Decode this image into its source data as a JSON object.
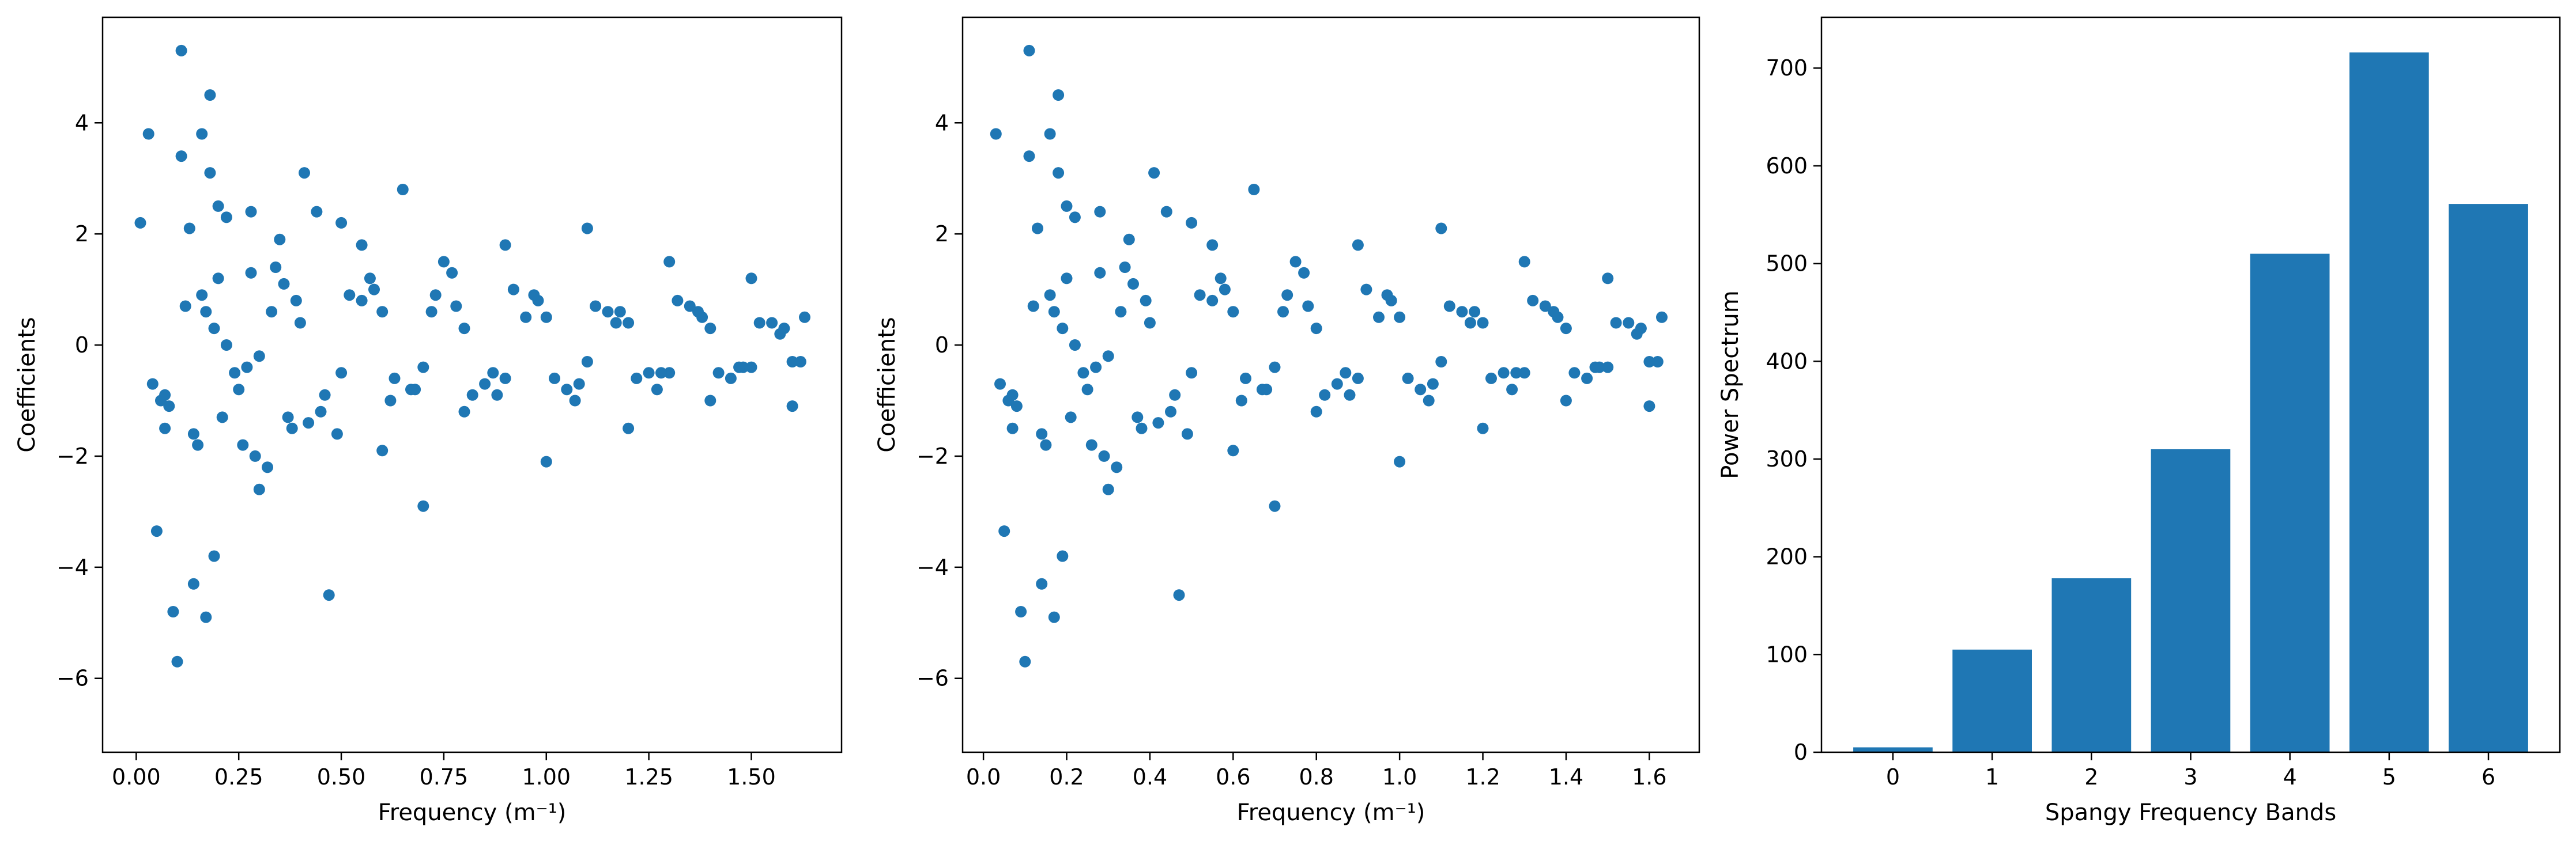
{
  "figure": {
    "background": "#ffffff",
    "marker_color": "#1f77b4",
    "bar_color": "#1f77b4"
  },
  "chart_data": [
    {
      "type": "scatter",
      "title": "",
      "xlabel": "Frequency (m⁻¹)",
      "ylabel": "Coefficients",
      "xlim": [
        -0.082,
        1.72
      ],
      "ylim": [
        -7.33,
        5.9
      ],
      "xticks": [
        0.0,
        0.25,
        0.5,
        0.75,
        1.0,
        1.25,
        1.5
      ],
      "xtick_labels": [
        "0.00",
        "0.25",
        "0.50",
        "0.75",
        "1.00",
        "1.25",
        "1.50"
      ],
      "yticks": [
        -6,
        -4,
        -2,
        0,
        2,
        4
      ],
      "ytick_labels": [
        "−6",
        "−4",
        "−2",
        "0",
        "2",
        "4"
      ],
      "grid": false,
      "legend": "none",
      "x": [
        0.01,
        0.03,
        0.04,
        0.05,
        0.06,
        0.07,
        0.07,
        0.09,
        0.1,
        0.11,
        0.11,
        0.13,
        0.14,
        0.15,
        0.16,
        0.17,
        0.18,
        0.18,
        0.19,
        0.2,
        0.22,
        0.24,
        0.26,
        0.28,
        0.3,
        0.32,
        0.35,
        0.38,
        0.41,
        0.44,
        0.47,
        0.5,
        0.55,
        0.6,
        0.65,
        0.7,
        0.75,
        0.8,
        0.9,
        1.0,
        1.1,
        1.2,
        1.3,
        1.4,
        1.5,
        1.6,
        1.63,
        0.2,
        0.25,
        0.33,
        0.42,
        0.12,
        0.08,
        0.16,
        0.27,
        0.36,
        0.46,
        0.55,
        0.63,
        0.73,
        0.85,
        0.95,
        1.05,
        1.15,
        1.25,
        1.35,
        1.45,
        1.55,
        1.6,
        0.3,
        0.4,
        0.5,
        0.6,
        0.7,
        0.8,
        0.9,
        1.0,
        1.1,
        1.2,
        1.3,
        1.4,
        1.5,
        0.22,
        0.34,
        0.45,
        0.58,
        0.68,
        0.78,
        0.88,
        0.98,
        1.08,
        1.18,
        1.28,
        1.38,
        1.48,
        1.58,
        0.14,
        0.19,
        0.28,
        0.37,
        0.52,
        0.62,
        0.72,
        0.82,
        0.92,
        1.02,
        1.12,
        1.22,
        1.32,
        1.42,
        1.52,
        1.62,
        0.17,
        0.21,
        0.29,
        0.39,
        0.49,
        0.57,
        0.67,
        0.77,
        0.87,
        0.97,
        1.07,
        1.17,
        1.27,
        1.37,
        1.47,
        1.57
      ],
      "y": [
        2.2,
        3.8,
        -0.7,
        -3.35,
        -1.0,
        -0.9,
        -1.5,
        -4.8,
        -5.7,
        5.3,
        3.4,
        2.1,
        -4.3,
        -1.8,
        3.8,
        -4.9,
        4.5,
        3.1,
        -3.8,
        2.5,
        2.3,
        -0.5,
        -1.8,
        2.4,
        -2.6,
        -2.2,
        1.9,
        -1.5,
        3.1,
        2.4,
        -4.5,
        2.2,
        1.8,
        -1.9,
        2.8,
        -2.9,
        1.5,
        -1.2,
        1.8,
        -2.1,
        2.1,
        -1.5,
        1.5,
        -1.0,
        1.2,
        -1.1,
        0.5,
        1.2,
        -0.8,
        0.6,
        -1.4,
        0.7,
        -1.1,
        0.9,
        -0.4,
        1.1,
        -0.9,
        0.8,
        -0.6,
        0.9,
        -0.7,
        0.5,
        -0.8,
        0.6,
        -0.5,
        0.7,
        -0.6,
        0.4,
        -0.3,
        -0.2,
        0.4,
        -0.5,
        0.6,
        -0.4,
        0.3,
        -0.6,
        0.5,
        -0.3,
        0.4,
        -0.5,
        0.3,
        -0.4,
        0.0,
        1.4,
        -1.2,
        1.0,
        -0.8,
        0.7,
        -0.9,
        0.8,
        -0.7,
        0.6,
        -0.5,
        0.5,
        -0.4,
        0.3,
        -1.6,
        0.3,
        1.3,
        -1.3,
        0.9,
        -1.0,
        0.6,
        -0.9,
        1.0,
        -0.6,
        0.7,
        -0.6,
        0.8,
        -0.5,
        0.4,
        -0.3,
        0.6,
        -1.3,
        -2.0,
        0.8,
        -1.6,
        1.2,
        -0.8,
        1.3,
        -0.5,
        0.9,
        -1.0,
        0.4,
        -0.8,
        0.6,
        -0.4,
        0.2
      ]
    },
    {
      "type": "scatter",
      "title": "",
      "xlabel": "Frequency (m⁻¹)",
      "ylabel": "Coefficients",
      "xlim": [
        -0.05,
        1.72
      ],
      "ylim": [
        -7.33,
        5.9
      ],
      "xticks": [
        0.0,
        0.2,
        0.4,
        0.6,
        0.8,
        1.0,
        1.2,
        1.4,
        1.6
      ],
      "xtick_labels": [
        "0.0",
        "0.2",
        "0.4",
        "0.6",
        "0.8",
        "1.0",
        "1.2",
        "1.4",
        "1.6"
      ],
      "yticks": [
        -6,
        -4,
        -2,
        0,
        2,
        4
      ],
      "ytick_labels": [
        "−6",
        "−4",
        "−2",
        "0",
        "2",
        "4"
      ],
      "grid": false,
      "legend": "none",
      "x": [
        0.03,
        0.04,
        0.05,
        0.06,
        0.07,
        0.07,
        0.09,
        0.1,
        0.11,
        0.11,
        0.13,
        0.14,
        0.15,
        0.16,
        0.17,
        0.18,
        0.18,
        0.19,
        0.2,
        0.22,
        0.24,
        0.26,
        0.28,
        0.3,
        0.32,
        0.35,
        0.38,
        0.41,
        0.44,
        0.47,
        0.5,
        0.55,
        0.6,
        0.65,
        0.7,
        0.75,
        0.8,
        0.9,
        1.0,
        1.1,
        1.2,
        1.3,
        1.4,
        1.5,
        1.6,
        1.63,
        0.2,
        0.25,
        0.33,
        0.42,
        0.12,
        0.08,
        0.16,
        0.27,
        0.36,
        0.46,
        0.55,
        0.63,
        0.73,
        0.85,
        0.95,
        1.05,
        1.15,
        1.25,
        1.35,
        1.45,
        1.55,
        1.6,
        0.3,
        0.4,
        0.5,
        0.6,
        0.7,
        0.8,
        0.9,
        1.0,
        1.1,
        1.2,
        1.3,
        1.4,
        1.5,
        0.22,
        0.34,
        0.45,
        0.58,
        0.68,
        0.78,
        0.88,
        0.98,
        1.08,
        1.18,
        1.28,
        1.38,
        1.48,
        1.58,
        0.14,
        0.19,
        0.28,
        0.37,
        0.52,
        0.62,
        0.72,
        0.82,
        0.92,
        1.02,
        1.12,
        1.22,
        1.32,
        1.42,
        1.52,
        1.62,
        0.17,
        0.21,
        0.29,
        0.39,
        0.49,
        0.57,
        0.67,
        0.77,
        0.87,
        0.97,
        1.07,
        1.17,
        1.27,
        1.37,
        1.47,
        1.57
      ],
      "y": [
        3.8,
        -0.7,
        -3.35,
        -1.0,
        -0.9,
        -1.5,
        -4.8,
        -5.7,
        5.3,
        3.4,
        2.1,
        -4.3,
        -1.8,
        3.8,
        -4.9,
        4.5,
        3.1,
        -3.8,
        2.5,
        2.3,
        -0.5,
        -1.8,
        2.4,
        -2.6,
        -2.2,
        1.9,
        -1.5,
        3.1,
        2.4,
        -4.5,
        2.2,
        1.8,
        -1.9,
        2.8,
        -2.9,
        1.5,
        -1.2,
        1.8,
        -2.1,
        2.1,
        -1.5,
        1.5,
        -1.0,
        1.2,
        -1.1,
        0.5,
        1.2,
        -0.8,
        0.6,
        -1.4,
        0.7,
        -1.1,
        0.9,
        -0.4,
        1.1,
        -0.9,
        0.8,
        -0.6,
        0.9,
        -0.7,
        0.5,
        -0.8,
        0.6,
        -0.5,
        0.7,
        -0.6,
        0.4,
        -0.3,
        -0.2,
        0.4,
        -0.5,
        0.6,
        -0.4,
        0.3,
        -0.6,
        0.5,
        -0.3,
        0.4,
        -0.5,
        0.3,
        -0.4,
        0.0,
        1.4,
        -1.2,
        1.0,
        -0.8,
        0.7,
        -0.9,
        0.8,
        -0.7,
        0.6,
        -0.5,
        0.5,
        -0.4,
        0.3,
        -1.6,
        0.3,
        1.3,
        -1.3,
        0.9,
        -1.0,
        0.6,
        -0.9,
        1.0,
        -0.6,
        0.7,
        -0.6,
        0.8,
        -0.5,
        0.4,
        -0.3,
        0.6,
        -1.3,
        -2.0,
        0.8,
        -1.6,
        1.2,
        -0.8,
        1.3,
        -0.5,
        0.9,
        -1.0,
        0.4,
        -0.8,
        0.6,
        -0.4,
        0.2
      ]
    },
    {
      "type": "bar",
      "title": "",
      "xlabel": "Spangy Frequency Bands",
      "ylabel": "Power Spectrum",
      "categories": [
        "0",
        "1",
        "2",
        "3",
        "4",
        "5",
        "6"
      ],
      "values": [
        5,
        105,
        178,
        310,
        510,
        716,
        561
      ],
      "xlim": [
        -0.72,
        6.72
      ],
      "ylim": [
        0,
        752
      ],
      "yticks": [
        0,
        100,
        200,
        300,
        400,
        500,
        600,
        700
      ],
      "ytick_labels": [
        "0",
        "100",
        "200",
        "300",
        "400",
        "500",
        "600",
        "700"
      ],
      "grid": false,
      "legend": "none"
    }
  ]
}
